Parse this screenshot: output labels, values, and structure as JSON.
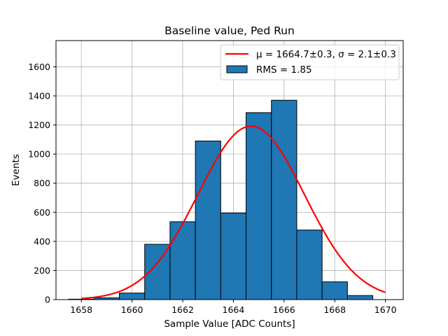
{
  "chart_data": {
    "type": "bar",
    "title": "Baseline value, Ped Run",
    "xlabel": "Sample Value [ADC Counts]",
    "ylabel": "Events",
    "xlim": [
      1657,
      1670.7
    ],
    "ylim": [
      0,
      1780
    ],
    "xticks": [
      1658,
      1660,
      1662,
      1664,
      1666,
      1668,
      1670
    ],
    "yticks": [
      0,
      200,
      400,
      600,
      800,
      1000,
      1200,
      1400,
      1600
    ],
    "grid": true,
    "legend_position": "top-right",
    "histogram": {
      "bin_edges": [
        1657.5,
        1658.5,
        1659.5,
        1660.5,
        1661.5,
        1662.5,
        1663.5,
        1664.5,
        1665.5,
        1666.5,
        1667.5,
        1668.5,
        1669.5
      ],
      "counts": [
        3,
        12,
        45,
        380,
        535,
        1090,
        595,
        1285,
        1370,
        478,
        122,
        28
      ],
      "color": "#1f77b4",
      "edgecolor": "#000000",
      "legend": "RMS = 1.85"
    },
    "fit": {
      "type": "gaussian",
      "mu": 1664.7,
      "sigma": 2.1,
      "amplitude": 1192,
      "x_range": [
        1658,
        1670
      ],
      "color": "#ff0000",
      "legend_mu": "μ = 1664.7±0.3",
      "legend_sigma": "σ = 2.1±0.3"
    }
  }
}
